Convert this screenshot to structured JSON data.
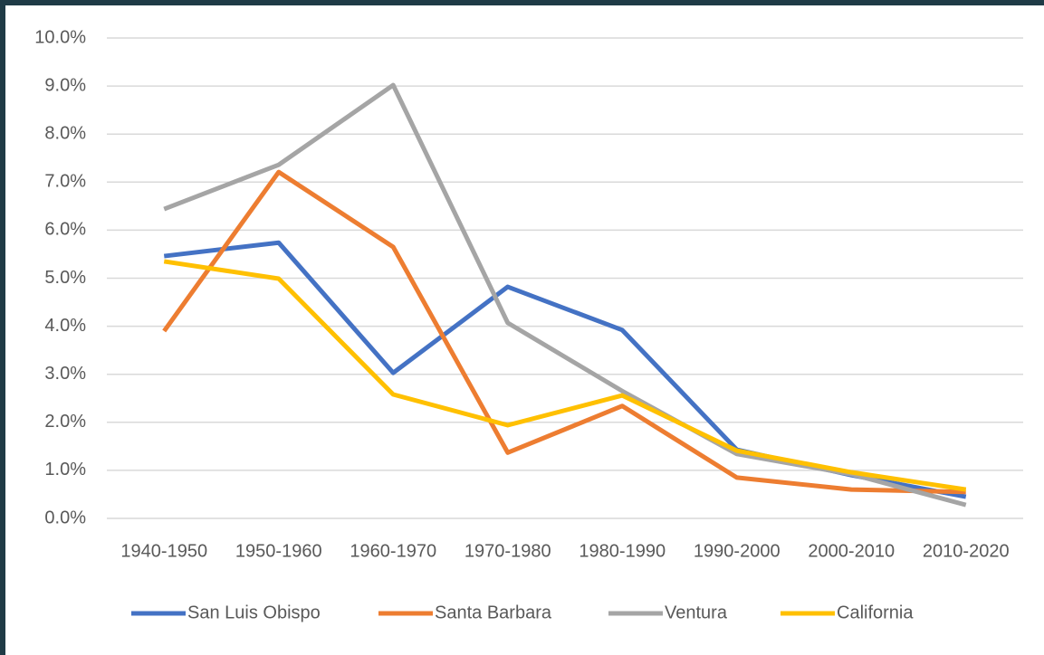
{
  "chart_data": {
    "type": "line",
    "categories": [
      "1940-1950",
      "1950-1960",
      "1960-1970",
      "1970-1980",
      "1980-1990",
      "1990-2000",
      "2000-2010",
      "2010-2020"
    ],
    "series": [
      {
        "name": "San Luis Obispo",
        "color": "#4472c4",
        "values": [
          5.46,
          5.74,
          3.03,
          4.82,
          3.92,
          1.43,
          0.9,
          0.45
        ]
      },
      {
        "name": "Santa Barbara",
        "color": "#ed7d31",
        "values": [
          3.9,
          7.21,
          5.65,
          1.37,
          2.34,
          0.85,
          0.6,
          0.55
        ]
      },
      {
        "name": "Ventura",
        "color": "#a5a5a5",
        "values": [
          6.44,
          7.36,
          9.02,
          4.07,
          2.65,
          1.34,
          0.92,
          0.28
        ]
      },
      {
        "name": "California",
        "color": "#ffc000",
        "values": [
          5.35,
          4.99,
          2.58,
          1.94,
          2.56,
          1.41,
          0.96,
          0.6
        ]
      }
    ],
    "ylim": [
      0,
      10
    ],
    "yticks": [
      {
        "value": 0,
        "label": "0.0%"
      },
      {
        "value": 1,
        "label": "1.0%"
      },
      {
        "value": 2,
        "label": "2.0%"
      },
      {
        "value": 3,
        "label": "3.0%"
      },
      {
        "value": 4,
        "label": "4.0%"
      },
      {
        "value": 5,
        "label": "5.0%"
      },
      {
        "value": 6,
        "label": "6.0%"
      },
      {
        "value": 7,
        "label": "7.0%"
      },
      {
        "value": 8,
        "label": "8.0%"
      },
      {
        "value": 9,
        "label": "9.0%"
      },
      {
        "value": 10,
        "label": "10.0%"
      }
    ],
    "grid": true,
    "legend": "bottom"
  }
}
